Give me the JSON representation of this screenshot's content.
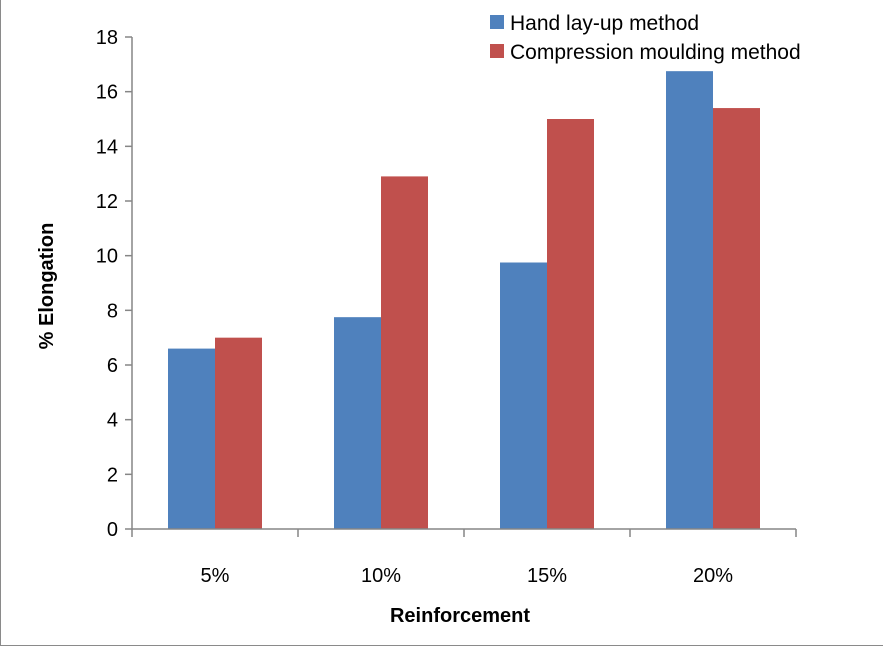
{
  "chart_data": {
    "type": "bar",
    "title": "",
    "xlabel": "Reinforcement",
    "ylabel": "% Elongation",
    "categories": [
      "5%",
      "10%",
      "15%",
      "20%"
    ],
    "ylim": [
      0,
      18
    ],
    "yticks": [
      "0",
      "2",
      "4",
      "6",
      "8",
      "10",
      "12",
      "14",
      "16",
      "18"
    ],
    "grid": false,
    "legend_position": "top-right",
    "series": [
      {
        "name": "Hand lay-up method",
        "color": "#4F81BD",
        "values": [
          6.6,
          7.75,
          9.75,
          16.75
        ]
      },
      {
        "name": "Compression moulding method",
        "color": "#C0504D",
        "values": [
          7.0,
          12.9,
          15.0,
          15.4
        ]
      }
    ]
  }
}
